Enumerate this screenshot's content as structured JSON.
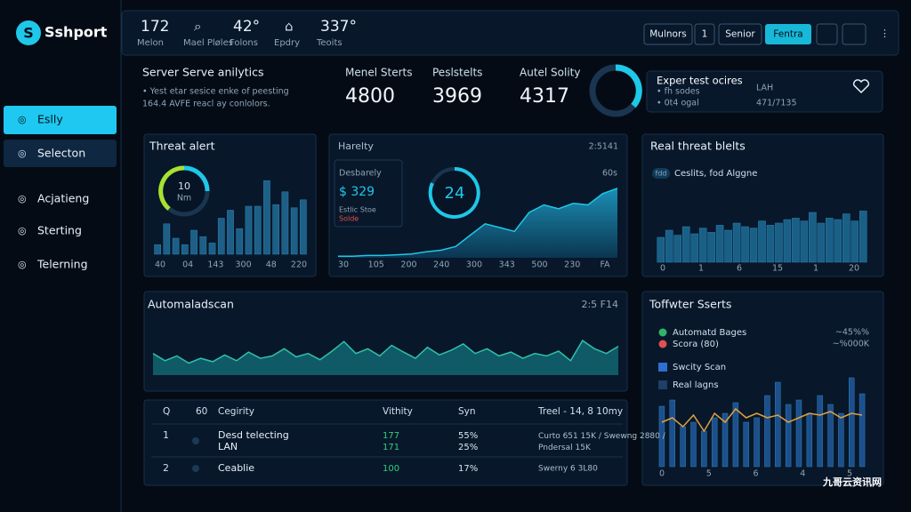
{
  "sidebar": {
    "logo": "Sshport",
    "nav": [
      "Eslly",
      "Selecton",
      "Acjatieng",
      "Sterting",
      "Telerning"
    ]
  },
  "topbar": {
    "stats": [
      {
        "value": "172",
        "label": "Melon"
      },
      {
        "value": "",
        "label": "Mael Pløles"
      },
      {
        "value": "42°",
        "label": "Folons"
      },
      {
        "value": "",
        "label": "Epdry"
      },
      {
        "value": "337°",
        "label": "Teoits"
      }
    ],
    "buttons": [
      "Mulnors",
      "1",
      "Senior",
      "Fentra"
    ]
  },
  "summary": {
    "title": "Server Serve anilytics",
    "lines": [
      "• Yest etar sesice enke of peesting",
      "164.4 AVFE reacl ay conlolors."
    ],
    "metrics": [
      {
        "label": "Menel Sterts",
        "value": "4800"
      },
      {
        "label": "Peslstelts",
        "value": "3969"
      },
      {
        "label": "Autel Solity",
        "value": "4317"
      }
    ],
    "card": {
      "title": "Exper test ocires",
      "lines": [
        "• fh sodes",
        "• 0t4 ogal"
      ],
      "side": [
        "LAH",
        "471/7135"
      ]
    }
  },
  "threat_alert": {
    "title": "Threat alert",
    "gauge_value": "10",
    "gauge_unit": "Nm",
    "values": [
      12,
      38,
      20,
      12,
      30,
      22,
      14,
      45,
      55,
      32,
      60,
      60,
      92,
      62,
      78,
      58,
      68
    ],
    "x_labels": [
      "40",
      "04",
      "143",
      "300",
      "48",
      "220"
    ]
  },
  "harelty": {
    "title": "Harelty",
    "time": "2:5141",
    "sub": "Desbarely",
    "amount": "$ 329",
    "legend": [
      "Estlic Stoe",
      "Solde"
    ],
    "circle": "24",
    "right_label": "60s",
    "values": [
      2,
      2,
      3,
      3,
      4,
      5,
      8,
      10,
      15,
      30,
      45,
      40,
      35,
      60,
      70,
      65,
      72,
      70,
      85,
      92
    ],
    "x_labels": [
      "30",
      "105",
      "200",
      "240",
      "300",
      "343",
      "500",
      "230",
      "FA"
    ]
  },
  "real_threat": {
    "title": "Real threat blelts",
    "tag": "fdd",
    "tag_text": "Ceslits, fod Alggne",
    "values": [
      35,
      45,
      38,
      50,
      40,
      48,
      42,
      52,
      45,
      55,
      50,
      48,
      58,
      52,
      55,
      60,
      62,
      58,
      70,
      55,
      62,
      60,
      68,
      58,
      72
    ],
    "x_labels": [
      "0",
      "1",
      "6",
      "15",
      "1",
      "20"
    ]
  },
  "auto_scan": {
    "title": "Automaladscan",
    "time": "2:5 F14",
    "values": [
      45,
      30,
      40,
      25,
      35,
      28,
      42,
      30,
      48,
      35,
      40,
      55,
      38,
      45,
      32,
      50,
      70,
      45,
      55,
      40,
      62,
      48,
      35,
      58,
      42,
      52,
      65,
      45,
      55,
      40,
      48,
      35,
      45,
      40,
      50,
      30,
      72,
      55,
      45,
      60
    ]
  },
  "toffwter": {
    "title": "Toffwter Sserts",
    "legend": [
      {
        "name": "Automatd Bages",
        "value": "~45%%",
        "color": "#2fb36a"
      },
      {
        "name": "Scora (80)",
        "value": "~%000K",
        "color": "#e05050"
      },
      {
        "name": "Swcity Scan",
        "value": "",
        "color": "#2f6fd0"
      },
      {
        "name": "Real lagns",
        "value": "",
        "color": "#1e3f66"
      }
    ],
    "values": [
      68,
      75,
      45,
      50,
      40,
      55,
      60,
      72,
      50,
      55,
      80,
      95,
      70,
      75,
      60,
      80,
      70,
      60,
      100,
      82
    ],
    "line": [
      50,
      55,
      45,
      58,
      40,
      60,
      50,
      65,
      55,
      60,
      55,
      58,
      50,
      55,
      60,
      58,
      62,
      55,
      60,
      58
    ],
    "x_labels": [
      "0",
      "5",
      "6",
      "4",
      "5"
    ]
  },
  "table": {
    "headers": [
      "Q",
      "60",
      "Cegirity",
      "Vithity",
      "Syn",
      "Treel - 14, 8 10my"
    ],
    "rows": [
      [
        "1",
        "Desd telecting LAN",
        "177 171",
        "55% 25%",
        "Curto 651 15K / Swewng 2880 / Pndersal 15K"
      ],
      [
        "2",
        "Ceablie",
        "100",
        "17%",
        "Swerny 6 3L80"
      ]
    ]
  },
  "watermark": "九哥云资讯网"
}
